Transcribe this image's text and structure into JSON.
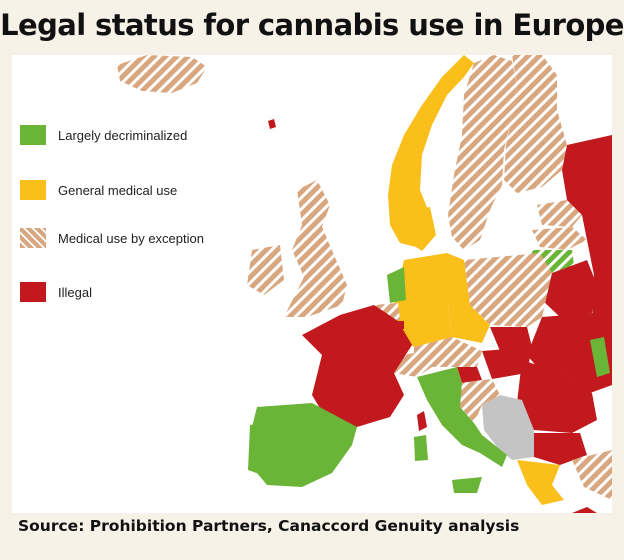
{
  "title": "Legal status for cannabis use in Europe",
  "colors": {
    "largely_decriminalized": "#6ab537",
    "general_medical_use": "#fbbf1b",
    "medical_use_by_exception": "#d9a77f",
    "hatch": "#ffffff",
    "illegal": "#c1191d",
    "no_data": "#c4c4c4",
    "sea": "#ffffff",
    "background": "#f6f2e8"
  },
  "legend": [
    {
      "key": "largely_decriminalized",
      "label": "Largely decriminalized",
      "color": "#6ab537",
      "hatched": false
    },
    {
      "key": "general_medical_use",
      "label": "General medical use",
      "color": "#fbbf1b",
      "hatched": false
    },
    {
      "key": "medical_use_by_exception",
      "label": "Medical use by exception",
      "color": "#d9a77f",
      "hatched": true
    },
    {
      "key": "illegal",
      "label": "Illegal",
      "color": "#c1191d",
      "hatched": false
    }
  ],
  "source": "Source: Prohibition Partners, Canaccord Genuity analysis"
}
